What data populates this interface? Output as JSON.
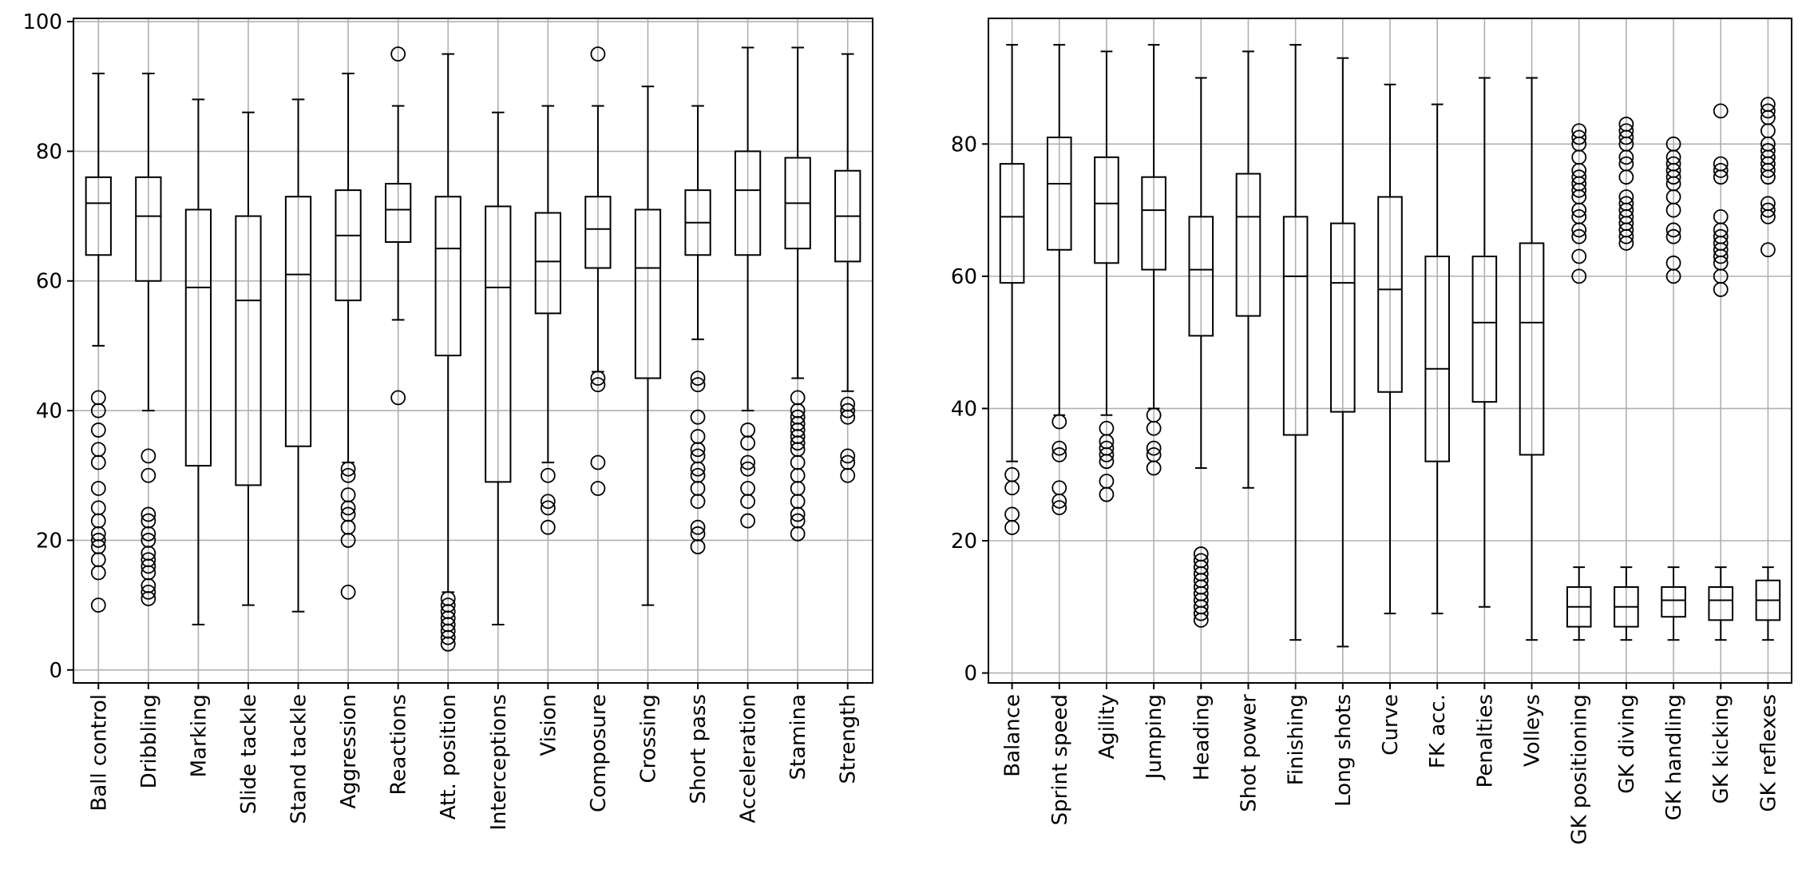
{
  "chart_data": [
    {
      "type": "boxplot",
      "title": "",
      "xlabel": "",
      "ylabel": "",
      "grid": true,
      "ylim": [
        -2,
        100.5
      ],
      "yticks": [
        0,
        20,
        40,
        60,
        80,
        100
      ],
      "categories": [
        "Ball control",
        "Dribbling",
        "Marking",
        "Slide tackle",
        "Stand tackle",
        "Aggression",
        "Reactions",
        "Att. position",
        "Interceptions",
        "Vision",
        "Composure",
        "Crossing",
        "Short pass",
        "Acceleration",
        "Stamina",
        "Strength"
      ],
      "boxes": [
        {
          "whisker_low": 50,
          "q1": 64,
          "median": 72,
          "q3": 76,
          "whisker_high": 92,
          "outliers": [
            10,
            15,
            17,
            19,
            20,
            21,
            23,
            25,
            28,
            32,
            34,
            37,
            40,
            42
          ]
        },
        {
          "whisker_low": 40,
          "q1": 60,
          "median": 70,
          "q3": 76,
          "whisker_high": 92,
          "outliers": [
            11,
            12,
            13,
            15,
            16,
            17,
            18,
            20,
            21,
            23,
            24,
            30,
            33
          ]
        },
        {
          "whisker_low": 7,
          "q1": 31.5,
          "median": 59,
          "q3": 71,
          "whisker_high": 88,
          "outliers": []
        },
        {
          "whisker_low": 10,
          "q1": 28.5,
          "median": 57,
          "q3": 70,
          "whisker_high": 86,
          "outliers": []
        },
        {
          "whisker_low": 9,
          "q1": 34.5,
          "median": 61,
          "q3": 73,
          "whisker_high": 88,
          "outliers": []
        },
        {
          "whisker_low": 32,
          "q1": 57,
          "median": 67,
          "q3": 74,
          "whisker_high": 92,
          "outliers": [
            12,
            20,
            22,
            24,
            25,
            27,
            30,
            31
          ]
        },
        {
          "whisker_low": 54,
          "q1": 66,
          "median": 71,
          "q3": 75,
          "whisker_high": 87,
          "outliers": [
            42,
            95
          ]
        },
        {
          "whisker_low": 12,
          "q1": 48.5,
          "median": 65,
          "q3": 73,
          "whisker_high": 95,
          "outliers": [
            4,
            5,
            6,
            7,
            8,
            9,
            10,
            11
          ]
        },
        {
          "whisker_low": 7,
          "q1": 29,
          "median": 59,
          "q3": 71.5,
          "whisker_high": 86,
          "outliers": []
        },
        {
          "whisker_low": 32,
          "q1": 55,
          "median": 63,
          "q3": 70.5,
          "whisker_high": 87,
          "outliers": [
            22,
            25,
            26,
            30
          ]
        },
        {
          "whisker_low": 46,
          "q1": 62,
          "median": 68,
          "q3": 73,
          "whisker_high": 87,
          "outliers": [
            28,
            32,
            44,
            45,
            95
          ]
        },
        {
          "whisker_low": 10,
          "q1": 45,
          "median": 62,
          "q3": 71,
          "whisker_high": 90,
          "outliers": []
        },
        {
          "whisker_low": 51,
          "q1": 64,
          "median": 69,
          "q3": 74,
          "whisker_high": 87,
          "outliers": [
            19,
            21,
            22,
            26,
            28,
            30,
            31,
            33,
            34,
            36,
            39,
            44,
            45
          ]
        },
        {
          "whisker_low": 40,
          "q1": 64,
          "median": 74,
          "q3": 80,
          "whisker_high": 96,
          "outliers": [
            23,
            26,
            28,
            31,
            32,
            35,
            37
          ]
        },
        {
          "whisker_low": 45,
          "q1": 65,
          "median": 72,
          "q3": 79,
          "whisker_high": 96,
          "outliers": [
            21,
            23,
            24,
            26,
            28,
            30,
            32,
            34,
            35,
            36,
            37,
            38,
            39,
            40,
            42
          ]
        },
        {
          "whisker_low": 43,
          "q1": 63,
          "median": 70,
          "q3": 77,
          "whisker_high": 95,
          "outliers": [
            30,
            32,
            33,
            39,
            40,
            41
          ]
        }
      ]
    },
    {
      "type": "boxplot",
      "title": "",
      "xlabel": "",
      "ylabel": "",
      "grid": true,
      "ylim": [
        -1.5,
        99
      ],
      "yticks": [
        0,
        20,
        40,
        60,
        80
      ],
      "categories": [
        "Balance",
        "Sprint speed",
        "Agility",
        "Jumping",
        "Heading",
        "Shot power",
        "Finishing",
        "Long shots",
        "Curve",
        "FK acc.",
        "Penalties",
        "Volleys",
        "GK positioning",
        "GK diving",
        "GK handling",
        "GK kicking",
        "GK reflexes"
      ],
      "boxes": [
        {
          "whisker_low": 32,
          "q1": 59,
          "median": 69,
          "q3": 77,
          "whisker_high": 95,
          "outliers": [
            22,
            24,
            28,
            30
          ]
        },
        {
          "whisker_low": 39,
          "q1": 64,
          "median": 74,
          "q3": 81,
          "whisker_high": 95,
          "outliers": [
            25,
            26,
            28,
            33,
            34,
            38
          ]
        },
        {
          "whisker_low": 39,
          "q1": 62,
          "median": 71,
          "q3": 78,
          "whisker_high": 94,
          "outliers": [
            27,
            29,
            32,
            33,
            34,
            35,
            37
          ]
        },
        {
          "whisker_low": 40,
          "q1": 61,
          "median": 70,
          "q3": 75,
          "whisker_high": 95,
          "outliers": [
            31,
            33,
            34,
            37,
            39
          ]
        },
        {
          "whisker_low": 31,
          "q1": 51,
          "median": 61,
          "q3": 69,
          "whisker_high": 90,
          "outliers": [
            8,
            9,
            10,
            11,
            12,
            13,
            14,
            15,
            16,
            17,
            18
          ]
        },
        {
          "whisker_low": 28,
          "q1": 54,
          "median": 69,
          "q3": 75.5,
          "whisker_high": 94,
          "outliers": []
        },
        {
          "whisker_low": 5,
          "q1": 36,
          "median": 60,
          "q3": 69,
          "whisker_high": 95,
          "outliers": []
        },
        {
          "whisker_low": 4,
          "q1": 39.5,
          "median": 59,
          "q3": 68,
          "whisker_high": 93,
          "outliers": []
        },
        {
          "whisker_low": 9,
          "q1": 42.5,
          "median": 58,
          "q3": 72,
          "whisker_high": 89,
          "outliers": []
        },
        {
          "whisker_low": 9,
          "q1": 32,
          "median": 46,
          "q3": 63,
          "whisker_high": 86,
          "outliers": []
        },
        {
          "whisker_low": 10,
          "q1": 41,
          "median": 53,
          "q3": 63,
          "whisker_high": 90,
          "outliers": []
        },
        {
          "whisker_low": 5,
          "q1": 33,
          "median": 53,
          "q3": 65,
          "whisker_high": 90,
          "outliers": []
        },
        {
          "whisker_low": 5,
          "q1": 7,
          "median": 10,
          "q3": 13,
          "whisker_high": 16,
          "outliers": [
            60,
            63,
            66,
            67,
            69,
            70,
            72,
            73,
            74,
            75,
            76,
            78,
            80,
            81,
            82
          ]
        },
        {
          "whisker_low": 5,
          "q1": 7,
          "median": 10,
          "q3": 13,
          "whisker_high": 16,
          "outliers": [
            65,
            66,
            67,
            68,
            69,
            70,
            71,
            72,
            75,
            77,
            78,
            80,
            81,
            82,
            83
          ]
        },
        {
          "whisker_low": 5,
          "q1": 8.5,
          "median": 11,
          "q3": 13,
          "whisker_high": 16,
          "outliers": [
            60,
            62,
            66,
            67,
            70,
            72,
            74,
            75,
            76,
            77,
            78,
            80
          ]
        },
        {
          "whisker_low": 5,
          "q1": 8,
          "median": 11,
          "q3": 13,
          "whisker_high": 16,
          "outliers": [
            58,
            60,
            62,
            63,
            64,
            65,
            66,
            67,
            69,
            75,
            76,
            77,
            85
          ]
        },
        {
          "whisker_low": 5,
          "q1": 8,
          "median": 11,
          "q3": 14,
          "whisker_high": 16,
          "outliers": [
            64,
            69,
            70,
            71,
            75,
            76,
            77,
            78,
            79,
            80,
            82,
            84,
            85,
            86
          ]
        }
      ]
    }
  ]
}
